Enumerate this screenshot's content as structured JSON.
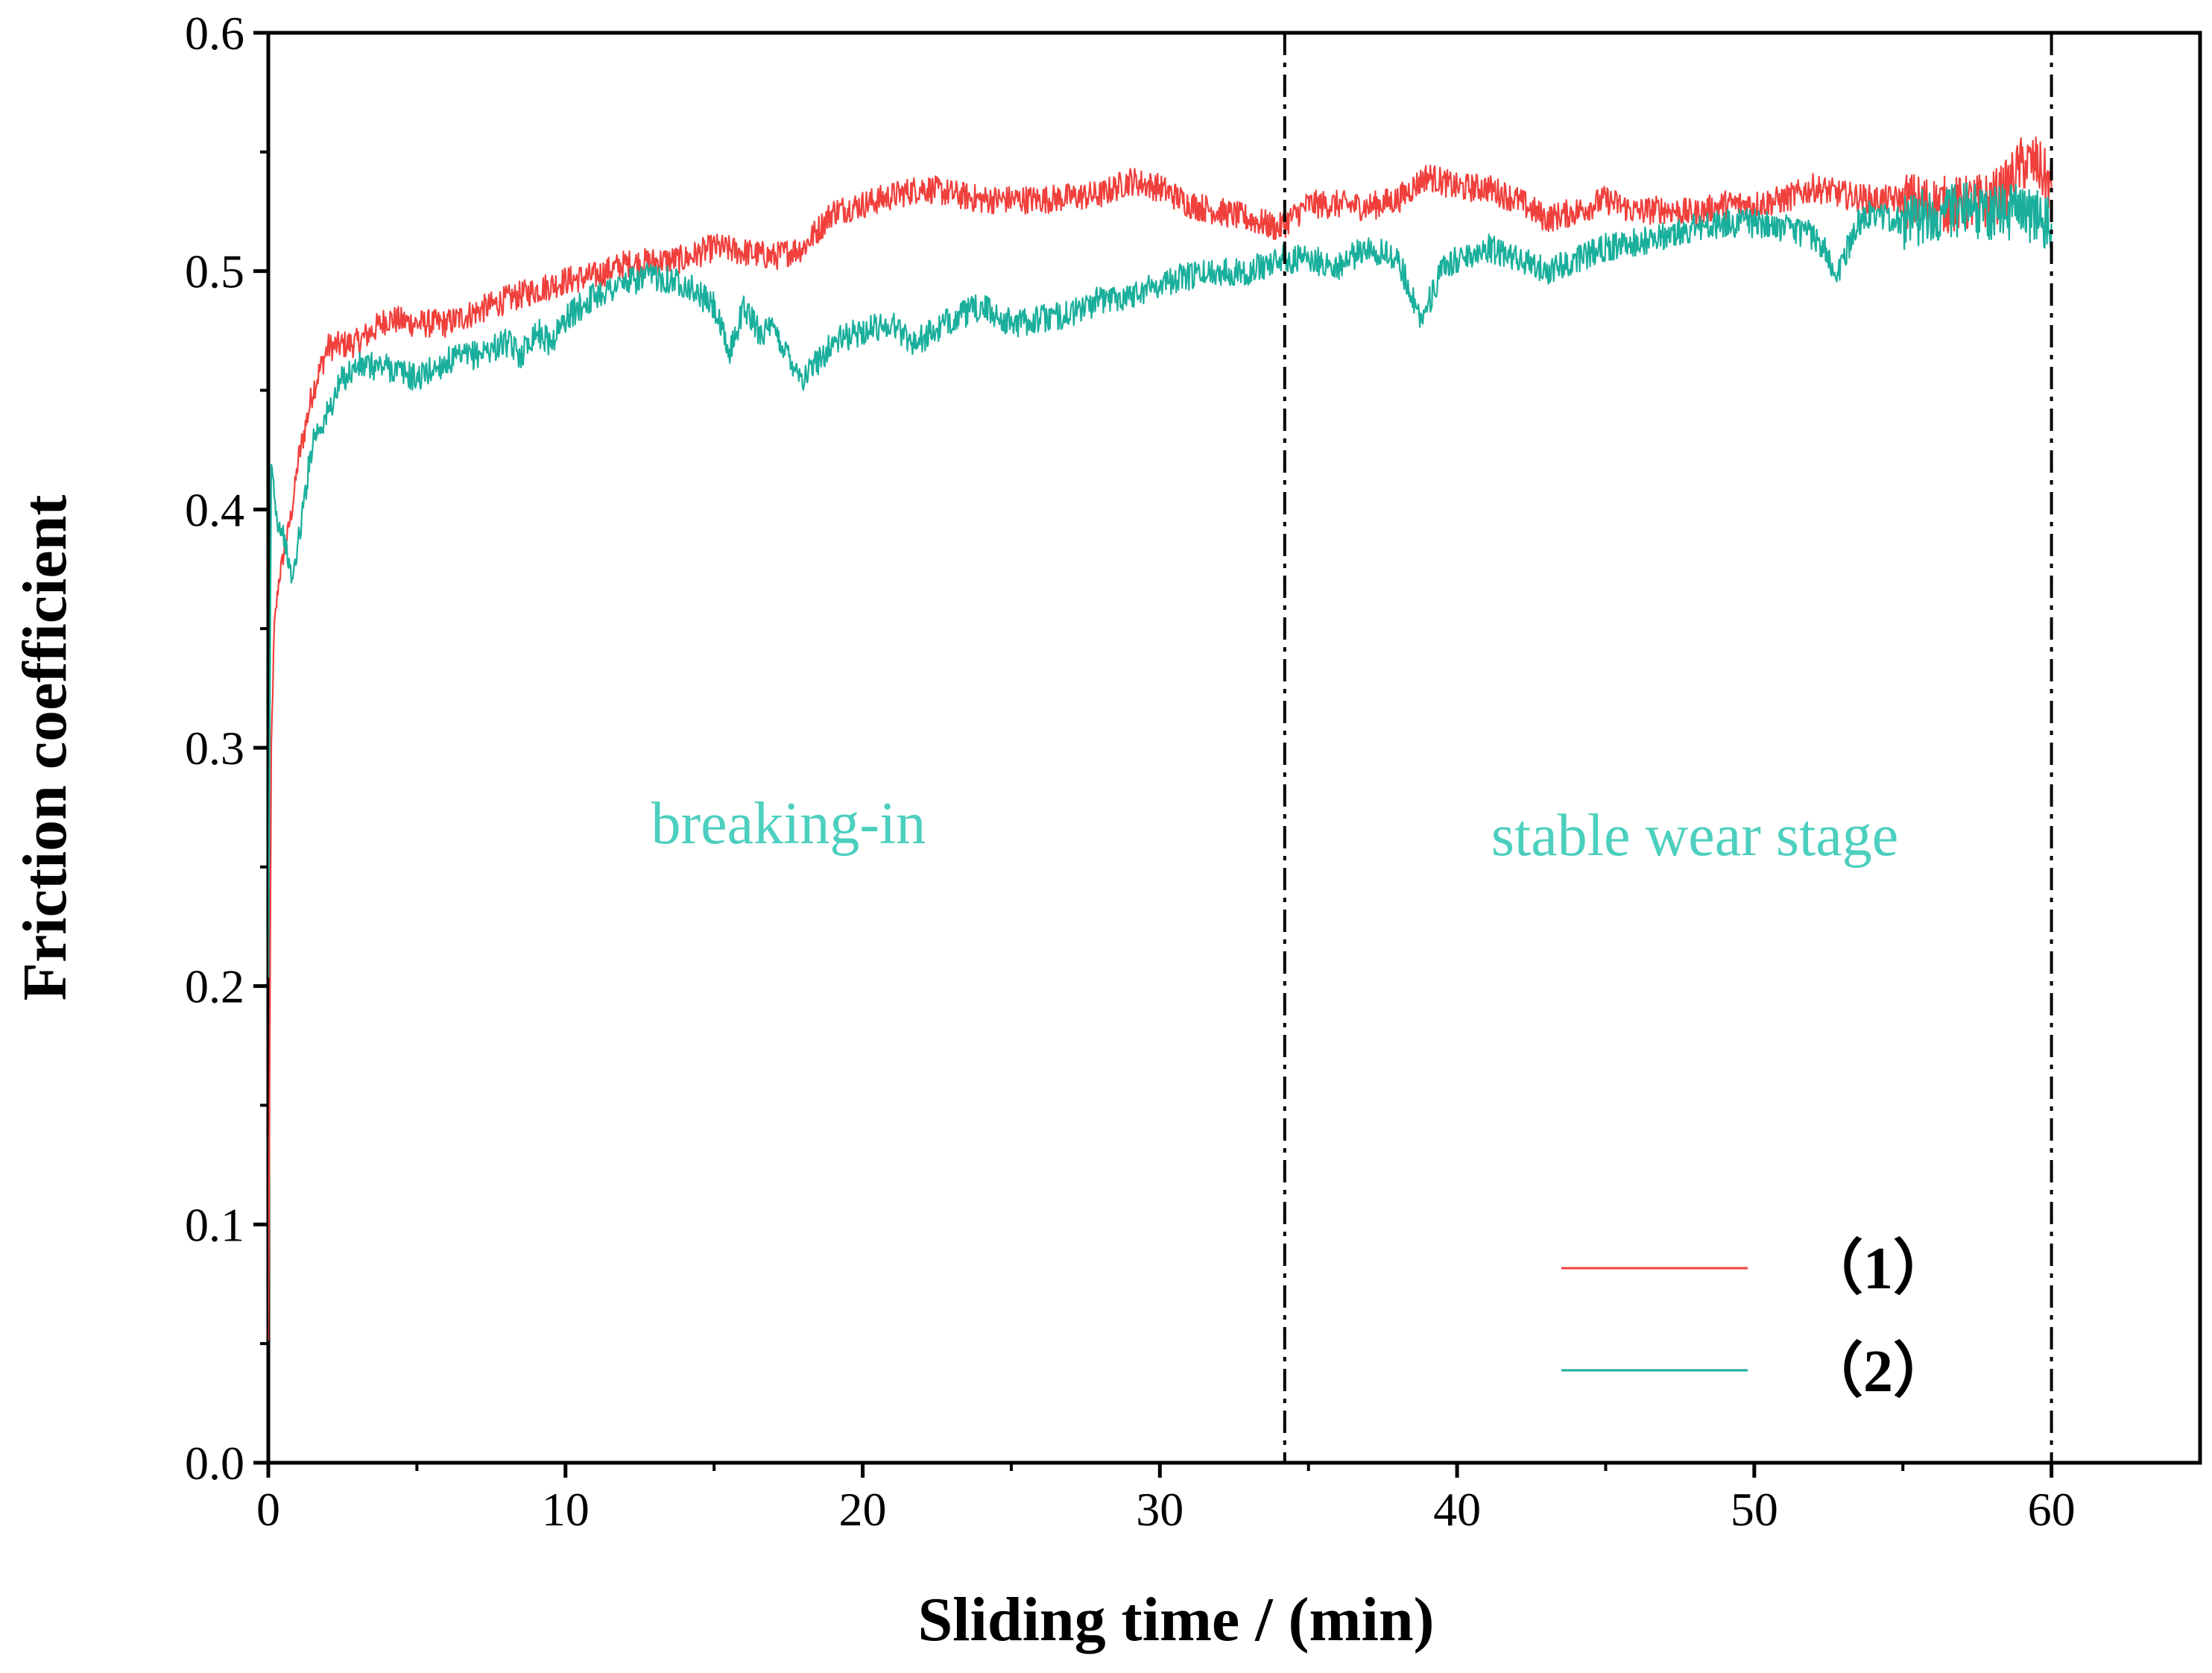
{
  "chart_data": {
    "type": "line",
    "title": "",
    "xlabel": "Sliding time / (min)",
    "ylabel": "Friction coefficient",
    "xlim": [
      0,
      65
    ],
    "ylim": [
      0.0,
      0.6
    ],
    "x_ticks": [
      0,
      10,
      20,
      30,
      40,
      50,
      60
    ],
    "x_tick_labels": [
      "0",
      "10",
      "20",
      "30",
      "40",
      "50",
      "60"
    ],
    "y_ticks": [
      0.0,
      0.1,
      0.2,
      0.3,
      0.4,
      0.5,
      0.6
    ],
    "y_tick_labels": [
      "0.0",
      "0.1",
      "0.2",
      "0.3",
      "0.4",
      "0.5",
      "0.6"
    ],
    "grid": false,
    "legend_position": "bottom-right",
    "series": [
      {
        "name": "（1）",
        "color": "#f0403c",
        "x": [
          0,
          0.1,
          0.2,
          0.35,
          0.5,
          0.8,
          1.0,
          1.5,
          2.0,
          3.0,
          4.0,
          5.0,
          6.0,
          8.0,
          10.0,
          11.0,
          12.0,
          14.0,
          15.0,
          16.0,
          17.0,
          18.0,
          19.0,
          20.0,
          22.0,
          24.0,
          26.0,
          28.0,
          29.0,
          30.0,
          31.0,
          32.0,
          33.0,
          34.0,
          35.0,
          36.0,
          37.0,
          38.0,
          39.0,
          40.0,
          41.0,
          42.0,
          43.0,
          44.0,
          45.0,
          46.0,
          47.0,
          48.0,
          49.0,
          50.0,
          51.0,
          52.0,
          53.0,
          54.0,
          55.0,
          56.0,
          57.0,
          58.0,
          58.5,
          59.0,
          59.5,
          60.0
        ],
        "y": [
          0.05,
          0.3,
          0.35,
          0.37,
          0.38,
          0.4,
          0.42,
          0.45,
          0.468,
          0.47,
          0.48,
          0.478,
          0.478,
          0.488,
          0.496,
          0.498,
          0.503,
          0.505,
          0.51,
          0.508,
          0.506,
          0.51,
          0.525,
          0.528,
          0.535,
          0.53,
          0.53,
          0.532,
          0.538,
          0.535,
          0.528,
          0.525,
          0.522,
          0.518,
          0.528,
          0.528,
          0.527,
          0.53,
          0.54,
          0.535,
          0.535,
          0.53,
          0.522,
          0.525,
          0.53,
          0.525,
          0.526,
          0.524,
          0.528,
          0.528,
          0.53,
          0.535,
          0.532,
          0.53,
          0.53,
          0.528,
          0.528,
          0.53,
          0.535,
          0.545,
          0.545,
          0.535
        ]
      },
      {
        "name": "（2）",
        "color": "#1aaf9c",
        "x": [
          0,
          0.1,
          0.3,
          0.5,
          0.8,
          1.0,
          1.5,
          2.0,
          2.5,
          3.0,
          4.0,
          5.0,
          6.0,
          7.0,
          8.0,
          8.5,
          9.0,
          9.5,
          10.0,
          11.0,
          12.0,
          13.0,
          14.0,
          15.0,
          15.5,
          16.0,
          16.5,
          17.0,
          18.0,
          19.0,
          20.0,
          21.0,
          21.7,
          22.5,
          23.0,
          24.0,
          25.0,
          26.0,
          27.0,
          28.0,
          29.0,
          30.0,
          31.0,
          32.0,
          33.0,
          34.0,
          35.0,
          36.0,
          37.0,
          38.0,
          38.8,
          39.5,
          40.0,
          41.0,
          42.0,
          43.0,
          44.0,
          45.0,
          46.0,
          47.0,
          48.0,
          49.0,
          50.0,
          51.0,
          52.0,
          52.8,
          53.5,
          54.0,
          55.0,
          56.0,
          57.0,
          58.0,
          59.0,
          60.0
        ],
        "y": [
          0.2,
          0.42,
          0.395,
          0.39,
          0.37,
          0.385,
          0.43,
          0.44,
          0.455,
          0.46,
          0.46,
          0.455,
          0.462,
          0.465,
          0.47,
          0.465,
          0.475,
          0.47,
          0.48,
          0.49,
          0.495,
          0.498,
          0.495,
          0.485,
          0.465,
          0.485,
          0.475,
          0.475,
          0.455,
          0.47,
          0.475,
          0.478,
          0.47,
          0.475,
          0.48,
          0.485,
          0.478,
          0.48,
          0.482,
          0.488,
          0.49,
          0.495,
          0.498,
          0.5,
          0.5,
          0.505,
          0.505,
          0.502,
          0.51,
          0.505,
          0.48,
          0.5,
          0.505,
          0.51,
          0.505,
          0.5,
          0.505,
          0.51,
          0.512,
          0.515,
          0.518,
          0.52,
          0.52,
          0.518,
          0.515,
          0.5,
          0.52,
          0.525,
          0.52,
          0.525,
          0.525,
          0.525,
          0.525,
          0.52
        ]
      }
    ],
    "vertical_lines": [
      34.2,
      60.0
    ],
    "annotations": [
      {
        "text": "breaking-in",
        "x": 17.5,
        "y": 0.26,
        "color": "#4ccfbe"
      },
      {
        "text": "stable wear stage",
        "x": 48.0,
        "y": 0.255,
        "color": "#4ccfbe"
      }
    ]
  }
}
